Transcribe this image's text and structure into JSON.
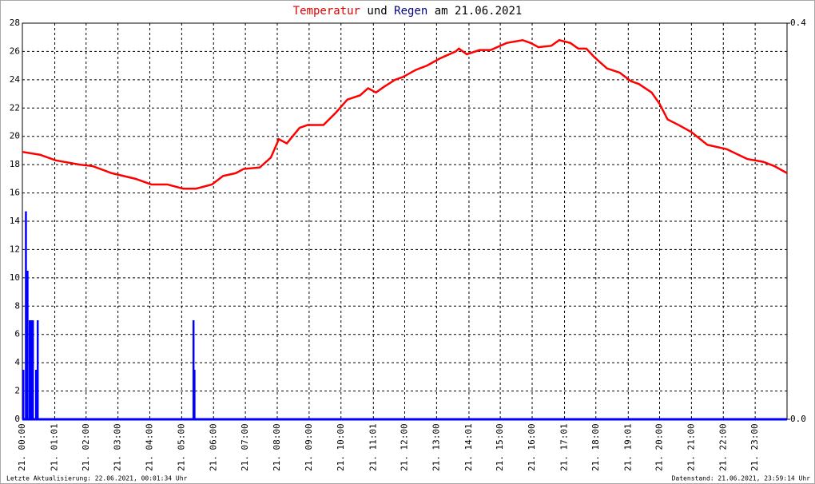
{
  "chart_data": {
    "type": "line",
    "title_suffix": "am 21.06.2021",
    "title_connector": "und",
    "series": [
      {
        "name": "Temperatur",
        "color": "#ff0000",
        "x": [
          0,
          0.55,
          1.05,
          1.8,
          2.2,
          2.8,
          3.55,
          4.05,
          4.55,
          5.05,
          5.45,
          5.95,
          6.3,
          6.7,
          6.95,
          7.45,
          7.8,
          8.05,
          8.3,
          8.7,
          8.95,
          9.45,
          9.85,
          10.2,
          10.6,
          10.85,
          11.1,
          11.35,
          11.7,
          11.95,
          12.35,
          12.7,
          13.1,
          13.6,
          13.7,
          13.95,
          14.35,
          14.7,
          15.2,
          15.7,
          15.95,
          16.2,
          16.6,
          16.85,
          17.2,
          17.45,
          17.7,
          17.95,
          18.35,
          18.75,
          19.1,
          19.35,
          19.75,
          20.0,
          20.25,
          20.6,
          21.0,
          21.5,
          22.1,
          22.75,
          23.25,
          23.6,
          24.0
        ],
        "values": [
          18.9,
          18.7,
          18.3,
          18.0,
          17.9,
          17.4,
          17.0,
          16.6,
          16.6,
          16.3,
          16.3,
          16.6,
          17.2,
          17.4,
          17.7,
          17.8,
          18.5,
          19.8,
          19.5,
          20.6,
          20.8,
          20.8,
          21.7,
          22.6,
          22.9,
          23.4,
          23.1,
          23.5,
          24.0,
          24.2,
          24.7,
          25.0,
          25.5,
          26.0,
          26.2,
          25.8,
          26.1,
          26.1,
          26.6,
          26.8,
          26.6,
          26.3,
          26.4,
          26.8,
          26.6,
          26.2,
          26.2,
          25.6,
          24.8,
          24.5,
          23.9,
          23.7,
          23.1,
          22.3,
          21.2,
          20.8,
          20.3,
          19.4,
          19.1,
          18.4,
          18.2,
          17.9,
          17.4
        ]
      },
      {
        "name": "Regen",
        "color": "#0000ff",
        "axis": "y2",
        "x": [
          0,
          0.08,
          0.13,
          0.2,
          0.25,
          0.3,
          0.4,
          0.45,
          5.34,
          5.37
        ],
        "values": [
          0.05,
          0.21,
          0.15,
          0.1,
          0.1,
          0.1,
          0.05,
          0.1,
          0.1,
          0.05
        ]
      }
    ],
    "xlim": [
      0,
      24
    ],
    "xticks": [
      {
        "value": 0,
        "label": "21. 00:00"
      },
      {
        "value": 1.017,
        "label": "21. 01:01"
      },
      {
        "value": 2,
        "label": "21. 02:00"
      },
      {
        "value": 3,
        "label": "21. 03:00"
      },
      {
        "value": 4,
        "label": "21. 04:00"
      },
      {
        "value": 5,
        "label": "21. 05:00"
      },
      {
        "value": 6,
        "label": "21. 06:00"
      },
      {
        "value": 7,
        "label": "21. 07:00"
      },
      {
        "value": 8,
        "label": "21. 08:00"
      },
      {
        "value": 9,
        "label": "21. 09:00"
      },
      {
        "value": 10,
        "label": "21. 10:00"
      },
      {
        "value": 11.017,
        "label": "21. 11:01"
      },
      {
        "value": 12,
        "label": "21. 12:00"
      },
      {
        "value": 13,
        "label": "21. 13:00"
      },
      {
        "value": 14.017,
        "label": "21. 14:01"
      },
      {
        "value": 15,
        "label": "21. 15:00"
      },
      {
        "value": 16,
        "label": "21. 16:00"
      },
      {
        "value": 17.017,
        "label": "21. 17:01"
      },
      {
        "value": 18,
        "label": "21. 18:00"
      },
      {
        "value": 19.017,
        "label": "21. 19:01"
      },
      {
        "value": 20,
        "label": "21. 20:00"
      },
      {
        "value": 21,
        "label": "21. 21:00"
      },
      {
        "value": 22,
        "label": "21. 22:00"
      },
      {
        "value": 23,
        "label": "21. 23:00"
      }
    ],
    "ylim": [
      0,
      28
    ],
    "yticks": [
      0,
      2,
      4,
      6,
      8,
      10,
      12,
      14,
      16,
      18,
      20,
      22,
      24,
      26,
      28
    ],
    "y2lim": [
      0,
      0.4
    ],
    "y2ticks": [
      {
        "value": 0,
        "label": "0.0"
      },
      0.4
    ],
    "grid": true,
    "footer_left": "Letzte Aktualisierung: 22.06.2021, 00:01:34 Uhr",
    "footer_right": "Datenstand: 21.06.2021, 23:59:14 Uhr"
  }
}
